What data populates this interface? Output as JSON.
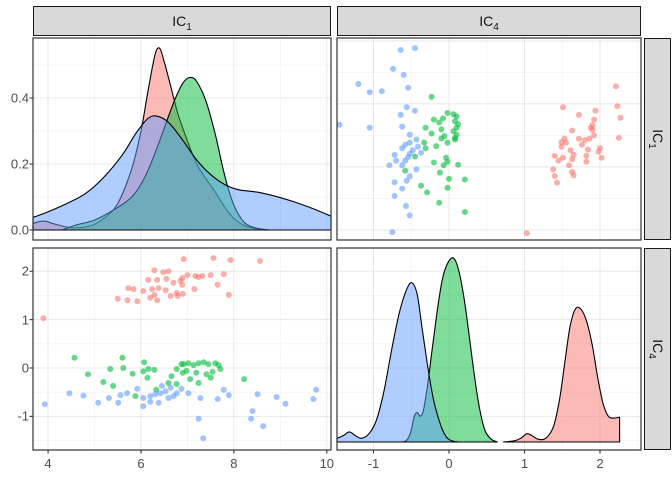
{
  "figure": {
    "kind": "scatterplot-matrix (ggpairs)",
    "strips": {
      "top": [
        {
          "base": "IC",
          "sub": "1"
        },
        {
          "base": "IC",
          "sub": "4"
        }
      ],
      "right": [
        {
          "base": "IC",
          "sub": "1"
        },
        {
          "base": "IC",
          "sub": "4"
        }
      ]
    },
    "colors": {
      "group1": "#F8766D",
      "group2": "#00BA38",
      "group3": "#619CFF",
      "strip_bg": "#D9D9D9",
      "strip_border": "#1A1A1A",
      "panel_border": "#333333",
      "grid_major": "#E8E8E8",
      "grid_minor": "#F3F3F3",
      "axis_text": "#4D4D4D",
      "tick_mark": "#333333",
      "density_stroke": "#000000"
    }
  },
  "axes": {
    "left_top_y": {
      "labels": [
        "0.0",
        "0.2",
        "0.4"
      ],
      "values": [
        0,
        0.2,
        0.4
      ]
    },
    "left_bottom_y": {
      "labels": [
        "-1",
        "0",
        "1",
        "2"
      ],
      "values": [
        -1,
        0,
        1,
        2
      ]
    },
    "bottom_left_x": {
      "labels": [
        "4",
        "6",
        "8",
        "10"
      ],
      "values": [
        4,
        6,
        8,
        10
      ]
    },
    "bottom_right_x": {
      "labels": [
        "-1",
        "0",
        "1",
        "2"
      ],
      "values": [
        -1,
        0,
        1,
        2
      ]
    }
  },
  "chart_data": {
    "type": "pairs_matrix",
    "variables": [
      "IC1",
      "IC4"
    ],
    "groups": [
      {
        "id": "group1",
        "color": "#F8766D"
      },
      {
        "id": "group2",
        "color": "#00BA38"
      },
      {
        "id": "group3",
        "color": "#619CFF"
      }
    ],
    "observations_note": "each point is [IC1, IC4]; same data drives both scatter panels (transposed)",
    "observations": {
      "group1": [
        [
          3.9,
          1.03
        ],
        [
          5.5,
          1.43
        ],
        [
          5.71,
          1.4
        ],
        [
          5.73,
          1.65
        ],
        [
          5.84,
          1.63
        ],
        [
          5.92,
          1.38
        ],
        [
          6.05,
          1.59
        ],
        [
          6.16,
          1.82
        ],
        [
          6.2,
          1.45
        ],
        [
          6.24,
          1.63
        ],
        [
          6.29,
          2.02
        ],
        [
          6.29,
          1.51
        ],
        [
          6.35,
          1.82
        ],
        [
          6.35,
          1.4
        ],
        [
          6.38,
          1.65
        ],
        [
          6.48,
          1.98
        ],
        [
          6.53,
          1.61
        ],
        [
          6.55,
          1.84
        ],
        [
          6.59,
          2.0
        ],
        [
          6.64,
          1.49
        ],
        [
          6.7,
          1.76
        ],
        [
          6.77,
          1.55
        ],
        [
          6.79,
          1.49
        ],
        [
          6.85,
          1.8
        ],
        [
          6.89,
          1.86
        ],
        [
          6.89,
          1.72
        ],
        [
          6.9,
          1.53
        ],
        [
          6.92,
          2.25
        ],
        [
          7.0,
          1.92
        ],
        [
          7.15,
          1.63
        ],
        [
          7.17,
          1.9
        ],
        [
          7.24,
          1.88
        ],
        [
          7.32,
          1.9
        ],
        [
          7.5,
          1.92
        ],
        [
          7.56,
          2.27
        ],
        [
          7.65,
          1.72
        ],
        [
          7.78,
          1.94
        ],
        [
          7.89,
          1.51
        ],
        [
          7.93,
          2.23
        ],
        [
          8.56,
          2.21
        ]
      ],
      "group2": [
        [
          4.57,
          0.21
        ],
        [
          4.86,
          -0.13
        ],
        [
          5.19,
          -0.29
        ],
        [
          5.34,
          -0.02
        ],
        [
          5.4,
          -0.37
        ],
        [
          5.6,
          0.21
        ],
        [
          5.62,
          0.0
        ],
        [
          5.82,
          -0.12
        ],
        [
          5.88,
          -0.58
        ],
        [
          6.05,
          -0.07
        ],
        [
          6.07,
          0.12
        ],
        [
          6.14,
          -0.2
        ],
        [
          6.16,
          -0.02
        ],
        [
          6.29,
          -0.04
        ],
        [
          6.33,
          -0.45
        ],
        [
          6.59,
          -0.31
        ],
        [
          6.66,
          -0.17
        ],
        [
          6.77,
          -0.33
        ],
        [
          6.77,
          -0.02
        ],
        [
          6.87,
          0.08
        ],
        [
          6.9,
          -0.1
        ],
        [
          6.92,
          0.08
        ],
        [
          6.98,
          -0.06
        ],
        [
          7.02,
          0.1
        ],
        [
          7.06,
          -0.23
        ],
        [
          7.13,
          0.06
        ],
        [
          7.19,
          -0.1
        ],
        [
          7.24,
          0.1
        ],
        [
          7.24,
          -0.31
        ],
        [
          7.35,
          0.12
        ],
        [
          7.41,
          -0.13
        ],
        [
          7.45,
          0.08
        ],
        [
          7.5,
          -0.2
        ],
        [
          7.54,
          -0.08
        ],
        [
          7.6,
          0.1
        ],
        [
          7.67,
          0.06
        ],
        [
          7.71,
          -0.02
        ],
        [
          8.22,
          -0.23
        ]
      ],
      "group3": [
        [
          3.93,
          -0.75
        ],
        [
          4.46,
          -0.52
        ],
        [
          4.76,
          -0.57
        ],
        [
          5.08,
          -0.72
        ],
        [
          5.31,
          -0.62
        ],
        [
          5.51,
          -0.72
        ],
        [
          5.56,
          -0.56
        ],
        [
          5.7,
          -0.52
        ],
        [
          5.92,
          -0.43
        ],
        [
          6.05,
          -0.62
        ],
        [
          6.05,
          -0.79
        ],
        [
          6.2,
          -0.58
        ],
        [
          6.2,
          -0.7
        ],
        [
          6.31,
          -0.54
        ],
        [
          6.38,
          -0.72
        ],
        [
          6.42,
          -0.52
        ],
        [
          6.45,
          -0.37
        ],
        [
          6.53,
          -0.48
        ],
        [
          6.59,
          -0.62
        ],
        [
          6.64,
          -0.41
        ],
        [
          6.7,
          -0.58
        ],
        [
          6.77,
          -0.52
        ],
        [
          6.87,
          -0.43
        ],
        [
          7.02,
          -0.52
        ],
        [
          7.24,
          -1.05
        ],
        [
          7.28,
          -0.62
        ],
        [
          7.34,
          -1.45
        ],
        [
          7.65,
          -0.64
        ],
        [
          7.78,
          -0.45
        ],
        [
          7.89,
          -0.56
        ],
        [
          8.37,
          -1.05
        ],
        [
          8.4,
          -0.89
        ],
        [
          8.51,
          -0.54
        ],
        [
          8.63,
          -1.2
        ],
        [
          8.92,
          -0.6
        ],
        [
          9.11,
          -0.74
        ],
        [
          9.71,
          -0.64
        ],
        [
          9.77,
          -0.45
        ]
      ]
    },
    "panels": [
      {
        "position": "top-left",
        "type": "density",
        "x_variable": "IC1",
        "xlim": [
          3.676,
          10.09
        ],
        "ylim": [
          -0.03,
          0.585
        ],
        "y_unit": "density",
        "curves": {
          "group1": [
            [
              3.676,
              0.02
            ],
            [
              3.9,
              0.027
            ],
            [
              4.15,
              0.018
            ],
            [
              4.5,
              0.007
            ],
            [
              4.9,
              0.012
            ],
            [
              5.2,
              0.035
            ],
            [
              5.5,
              0.08
            ],
            [
              5.8,
              0.185
            ],
            [
              6.0,
              0.3
            ],
            [
              6.15,
              0.42
            ],
            [
              6.3,
              0.53
            ],
            [
              6.4,
              0.551
            ],
            [
              6.5,
              0.51
            ],
            [
              6.65,
              0.43
            ],
            [
              6.8,
              0.35
            ],
            [
              7.0,
              0.27
            ],
            [
              7.2,
              0.2
            ],
            [
              7.4,
              0.155
            ],
            [
              7.6,
              0.115
            ],
            [
              7.8,
              0.07
            ],
            [
              8.0,
              0.035
            ],
            [
              8.25,
              0.012
            ],
            [
              8.5,
              0.004
            ],
            [
              8.75,
              0.0
            ]
          ],
          "group2": [
            [
              4.3,
              0.0
            ],
            [
              4.6,
              0.015
            ],
            [
              5.0,
              0.03
            ],
            [
              5.4,
              0.06
            ],
            [
              5.8,
              0.1
            ],
            [
              6.1,
              0.165
            ],
            [
              6.4,
              0.27
            ],
            [
              6.7,
              0.385
            ],
            [
              6.9,
              0.445
            ],
            [
              7.05,
              0.462
            ],
            [
              7.2,
              0.45
            ],
            [
              7.4,
              0.39
            ],
            [
              7.6,
              0.29
            ],
            [
              7.75,
              0.195
            ],
            [
              7.9,
              0.115
            ],
            [
              8.05,
              0.06
            ],
            [
              8.25,
              0.02
            ],
            [
              8.5,
              0.005
            ],
            [
              8.75,
              0.0
            ]
          ],
          "group3": [
            [
              3.676,
              0.038
            ],
            [
              4.0,
              0.055
            ],
            [
              4.4,
              0.08
            ],
            [
              4.8,
              0.11
            ],
            [
              5.2,
              0.16
            ],
            [
              5.6,
              0.228
            ],
            [
              5.9,
              0.295
            ],
            [
              6.15,
              0.338
            ],
            [
              6.35,
              0.345
            ],
            [
              6.6,
              0.325
            ],
            [
              6.9,
              0.272
            ],
            [
              7.2,
              0.212
            ],
            [
              7.5,
              0.168
            ],
            [
              7.8,
              0.138
            ],
            [
              8.1,
              0.122
            ],
            [
              8.5,
              0.115
            ],
            [
              8.9,
              0.102
            ],
            [
              9.3,
              0.085
            ],
            [
              9.7,
              0.065
            ],
            [
              10.09,
              0.042
            ]
          ]
        }
      },
      {
        "position": "top-right",
        "type": "scatter",
        "x_variable": "IC4",
        "y_variable": "IC1",
        "xlim": [
          -1.483,
          2.53
        ],
        "ylim": [
          3.68,
          10.09
        ],
        "series_source": "observations"
      },
      {
        "position": "bottom-left",
        "type": "scatter",
        "x_variable": "IC1",
        "y_variable": "IC4",
        "xlim": [
          3.676,
          10.09
        ],
        "ylim": [
          -1.69,
          2.48
        ],
        "series_source": "observations"
      },
      {
        "position": "bottom-right",
        "type": "density",
        "x_variable": "IC4",
        "xlim": [
          -1.483,
          2.53
        ],
        "y_unit": "relative (tallest peak = 1.0)",
        "curves": {
          "group1": [
            [
              0.72,
              0.0
            ],
            [
              0.85,
              0.005
            ],
            [
              0.95,
              0.02
            ],
            [
              1.03,
              0.045
            ],
            [
              1.1,
              0.035
            ],
            [
              1.18,
              0.015
            ],
            [
              1.28,
              0.02
            ],
            [
              1.38,
              0.08
            ],
            [
              1.46,
              0.22
            ],
            [
              1.53,
              0.42
            ],
            [
              1.6,
              0.62
            ],
            [
              1.67,
              0.72
            ],
            [
              1.74,
              0.725
            ],
            [
              1.82,
              0.66
            ],
            [
              1.9,
              0.52
            ],
            [
              1.97,
              0.35
            ],
            [
              2.04,
              0.21
            ],
            [
              2.11,
              0.14
            ],
            [
              2.18,
              0.13
            ],
            [
              2.26,
              0.135
            ]
          ],
          "group2": [
            [
              -0.62,
              0.0
            ],
            [
              -0.56,
              0.01
            ],
            [
              -0.51,
              0.05
            ],
            [
              -0.46,
              0.14
            ],
            [
              -0.42,
              0.16
            ],
            [
              -0.38,
              0.14
            ],
            [
              -0.34,
              0.17
            ],
            [
              -0.29,
              0.29
            ],
            [
              -0.23,
              0.48
            ],
            [
              -0.16,
              0.7
            ],
            [
              -0.09,
              0.88
            ],
            [
              -0.02,
              0.97
            ],
            [
              0.06,
              1.0
            ],
            [
              0.13,
              0.93
            ],
            [
              0.2,
              0.78
            ],
            [
              0.27,
              0.57
            ],
            [
              0.34,
              0.35
            ],
            [
              0.41,
              0.17
            ],
            [
              0.48,
              0.06
            ],
            [
              0.56,
              0.015
            ],
            [
              0.64,
              0.0
            ]
          ],
          "group3": [
            [
              -1.483,
              0.02
            ],
            [
              -1.4,
              0.035
            ],
            [
              -1.32,
              0.055
            ],
            [
              -1.24,
              0.035
            ],
            [
              -1.16,
              0.02
            ],
            [
              -1.06,
              0.045
            ],
            [
              -0.96,
              0.12
            ],
            [
              -0.86,
              0.28
            ],
            [
              -0.76,
              0.5
            ],
            [
              -0.66,
              0.7
            ],
            [
              -0.56,
              0.83
            ],
            [
              -0.49,
              0.865
            ],
            [
              -0.42,
              0.8
            ],
            [
              -0.36,
              0.63
            ],
            [
              -0.3,
              0.46
            ],
            [
              -0.25,
              0.33
            ],
            [
              -0.2,
              0.22
            ],
            [
              -0.14,
              0.13
            ],
            [
              -0.08,
              0.06
            ],
            [
              -0.02,
              0.02
            ],
            [
              0.05,
              0.005
            ],
            [
              0.12,
              0.0
            ]
          ]
        }
      }
    ]
  }
}
